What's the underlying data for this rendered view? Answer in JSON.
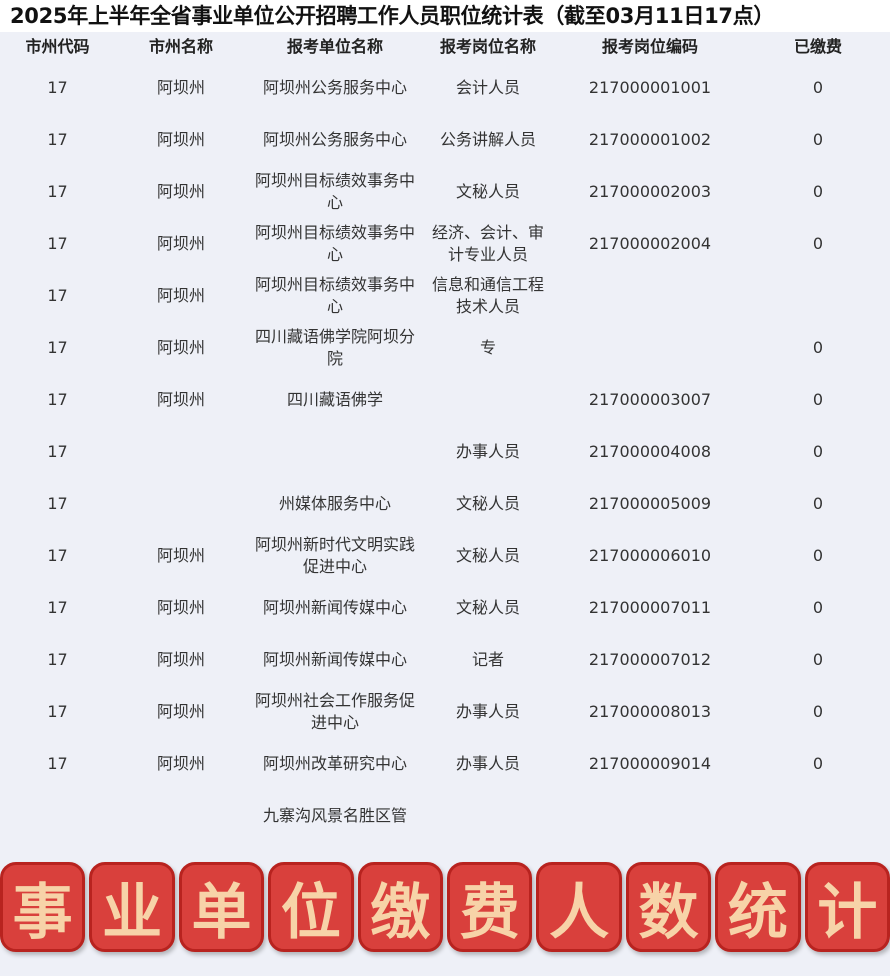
{
  "title": "2025年上半年全省事业单位公开招聘工作人员职位统计表（截至03月11日17点）",
  "headers": [
    "市州代码",
    "市州名称",
    "报考单位名称",
    "报考岗位名称",
    "报考岗位编码",
    "已缴费"
  ],
  "rows": [
    [
      "17",
      "阿坝州",
      "阿坝州公务服务中心",
      "会计人员",
      "217000001001",
      "0"
    ],
    [
      "17",
      "阿坝州",
      "阿坝州公务服务中心",
      "公务讲解人员",
      "217000001002",
      "0"
    ],
    [
      "17",
      "阿坝州",
      "阿坝州目标绩效事务中心",
      "文秘人员",
      "217000002003",
      "0"
    ],
    [
      "17",
      "阿坝州",
      "阿坝州目标绩效事务中心",
      "经济、会计、审计专业人员",
      "217000002004",
      "0"
    ],
    [
      "17",
      "阿坝州",
      "阿坝州目标绩效事务中心",
      "信息和通信工程技术人员",
      "",
      ""
    ],
    [
      "17",
      "阿坝州",
      "四川藏语佛学院阿坝分院",
      "专",
      "",
      "0"
    ],
    [
      "17",
      "阿坝州",
      "四川藏语佛学",
      "",
      "217000003007",
      "0"
    ],
    [
      "17",
      "",
      "",
      "办事人员",
      "217000004008",
      "0"
    ],
    [
      "17",
      "",
      "州媒体服务中心",
      "文秘人员",
      "217000005009",
      "0"
    ],
    [
      "17",
      "阿坝州",
      "阿坝州新时代文明实践促进中心",
      "文秘人员",
      "217000006010",
      "0"
    ],
    [
      "17",
      "阿坝州",
      "阿坝州新闻传媒中心",
      "文秘人员",
      "217000007011",
      "0"
    ],
    [
      "17",
      "阿坝州",
      "阿坝州新闻传媒中心",
      "记者",
      "217000007012",
      "0"
    ],
    [
      "17",
      "阿坝州",
      "阿坝州社会工作服务促进中心",
      "办事人员",
      "217000008013",
      "0"
    ],
    [
      "17",
      "阿坝州",
      "阿坝州改革研究中心",
      "办事人员",
      "217000009014",
      "0"
    ],
    [
      "",
      "",
      "九寨沟风景名胜区管",
      "",
      "",
      ""
    ]
  ],
  "banner": {
    "chars": [
      "事",
      "业",
      "单",
      "位",
      "缴",
      "费",
      "人",
      "数",
      "统",
      "计"
    ],
    "tile_color": "#d9403c",
    "text_color": "#f7d3a8"
  }
}
